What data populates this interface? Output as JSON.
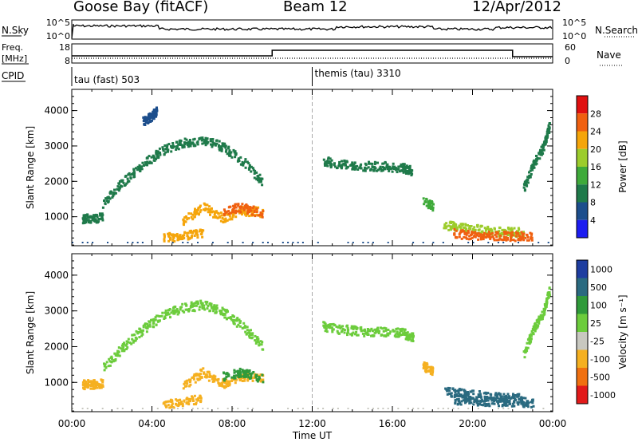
{
  "header": {
    "station": "Goose Bay (fitACF)",
    "beam": "Beam 12",
    "date": "12/Apr/2012"
  },
  "top_panels": {
    "nsky_label": "N.Sky",
    "nsky_ticks": [
      "10^5",
      "10^0"
    ],
    "nsearch_label": "N.Search",
    "nsearch_ticks": [
      "10^5",
      "10^0"
    ],
    "freq_label_1": "Freq.",
    "freq_label_2": "[MHz]",
    "freq_ticks": [
      "18",
      "8"
    ],
    "nave_label": "Nave",
    "nave_ticks": [
      "60",
      "0"
    ],
    "cpid_label": "CPID",
    "cpid_mode_1": "tau (fast) 503",
    "cpid_mode_2": "themis (tau) 3310"
  },
  "colors": {
    "power": [
      "#1c1cf0",
      "#1c4e8c",
      "#1f7a4a",
      "#3faa3a",
      "#9ccc2c",
      "#f5a50a",
      "#f06010",
      "#e01010"
    ],
    "velocity": [
      "#1e3da0",
      "#2a6a80",
      "#2f9a3a",
      "#6ccc3c",
      "#c8c8c0",
      "#f5b020",
      "#f07010",
      "#e21a1a"
    ]
  },
  "chart_data": [
    {
      "type": "heatmap",
      "title": "",
      "xlabel": "",
      "ylabel": "Slant Range [km]",
      "x_tick_labels": [
        "00:00",
        "04:00",
        "08:00",
        "12:00",
        "16:00",
        "20:00",
        "00:00"
      ],
      "y_tick_labels": [
        "1000",
        "2000",
        "3000",
        "4000"
      ],
      "xlim": [
        0,
        24
      ],
      "ylim": [
        180,
        4600
      ],
      "colorbar": {
        "label": "Power [dB]",
        "ticks": [
          "4",
          "8",
          "12",
          "16",
          "20",
          "24",
          "28"
        ],
        "range": [
          0,
          30
        ]
      },
      "series": [
        {
          "x": [
            0.5,
            1.0,
            1.5
          ],
          "y": [
            960,
            980,
            1000
          ],
          "value": 8
        },
        {
          "x": [
            1.5,
            2.5,
            3.5,
            4.5,
            5.5,
            6.5,
            7.5,
            8.5,
            9.5
          ],
          "y": [
            1400,
            2000,
            2500,
            2900,
            3100,
            3200,
            3000,
            2600,
            2000
          ],
          "value": 10
        },
        {
          "x": [
            3.5,
            4.0,
            4.2
          ],
          "y": [
            3700,
            3900,
            4000
          ],
          "value": 6
        },
        {
          "x": [
            4.5,
            5.5,
            6.5
          ],
          "y": [
            420,
            480,
            560
          ],
          "value": 22
        },
        {
          "x": [
            5.5,
            6.5,
            7.5,
            8.5,
            9.5
          ],
          "y": [
            900,
            1300,
            1000,
            1200,
            1150
          ],
          "value": 20
        },
        {
          "x": [
            7.5,
            8.5,
            9.5
          ],
          "y": [
            1200,
            1300,
            1100
          ],
          "value": 24
        },
        {
          "x": [
            12.5,
            13.5,
            14.5,
            15.5,
            16.5,
            17.0
          ],
          "y": [
            2600,
            2500,
            2450,
            2450,
            2400,
            2300
          ],
          "value": 8
        },
        {
          "x": [
            17.5,
            18.0
          ],
          "y": [
            1500,
            1300
          ],
          "value": 14
        },
        {
          "x": [
            18.5,
            19.5,
            20.5,
            21.5,
            22.5
          ],
          "y": [
            800,
            700,
            650,
            600,
            580
          ],
          "value": 18
        },
        {
          "x": [
            19.0,
            20.0,
            21.0,
            22.0,
            23.0
          ],
          "y": [
            550,
            520,
            500,
            480,
            450
          ],
          "value": 26
        },
        {
          "x": [
            22.5,
            23.0,
            23.5,
            23.8
          ],
          "y": [
            1800,
            2500,
            3000,
            3600
          ],
          "value": 8
        }
      ]
    },
    {
      "type": "heatmap",
      "title": "",
      "xlabel": "Time UT",
      "ylabel": "Slant Range [km]",
      "x_tick_labels": [
        "00:00",
        "04:00",
        "08:00",
        "12:00",
        "16:00",
        "20:00",
        "00:00"
      ],
      "y_tick_labels": [
        "1000",
        "2000",
        "3000",
        "4000"
      ],
      "xlim": [
        0,
        24
      ],
      "ylim": [
        180,
        4600
      ],
      "colorbar": {
        "label": "Velocity [m s^-1]",
        "ticks": [
          "1000",
          "500",
          "100",
          "25",
          "-25",
          "-100",
          "-500",
          "-1000"
        ],
        "range": [
          -1000,
          1000
        ]
      },
      "series": [
        {
          "x": [
            0.5,
            1.0,
            1.5
          ],
          "y": [
            960,
            980,
            1000
          ],
          "value": -150
        },
        {
          "x": [
            1.5,
            2.5,
            3.5,
            4.5,
            5.5,
            6.5,
            7.5,
            8.5,
            9.5
          ],
          "y": [
            1400,
            2000,
            2500,
            2900,
            3100,
            3200,
            3000,
            2600,
            2000
          ],
          "value": 0
        },
        {
          "x": [
            4.5,
            5.5,
            6.5
          ],
          "y": [
            420,
            480,
            560
          ],
          "value": -300
        },
        {
          "x": [
            5.5,
            6.5,
            7.5,
            8.5,
            9.5
          ],
          "y": [
            900,
            1300,
            1000,
            1200,
            1150
          ],
          "value": -250
        },
        {
          "x": [
            7.5,
            8.5,
            9.5
          ],
          "y": [
            1200,
            1300,
            1100
          ],
          "value": 80
        },
        {
          "x": [
            12.5,
            13.5,
            14.5,
            15.5,
            16.5,
            17.0
          ],
          "y": [
            2600,
            2500,
            2450,
            2450,
            2400,
            2300
          ],
          "value": 0
        },
        {
          "x": [
            17.5,
            18.0
          ],
          "y": [
            1500,
            1300
          ],
          "value": -200
        },
        {
          "x": [
            18.5,
            19.5,
            20.5,
            21.5,
            22.5
          ],
          "y": [
            800,
            700,
            650,
            600,
            580
          ],
          "value": 200
        },
        {
          "x": [
            19.0,
            20.0,
            21.0,
            22.0,
            23.0
          ],
          "y": [
            550,
            520,
            500,
            480,
            450
          ],
          "value": 300
        },
        {
          "x": [
            22.5,
            23.0,
            23.5,
            23.8
          ],
          "y": [
            1800,
            2500,
            3000,
            3600
          ],
          "value": 0
        }
      ]
    }
  ]
}
